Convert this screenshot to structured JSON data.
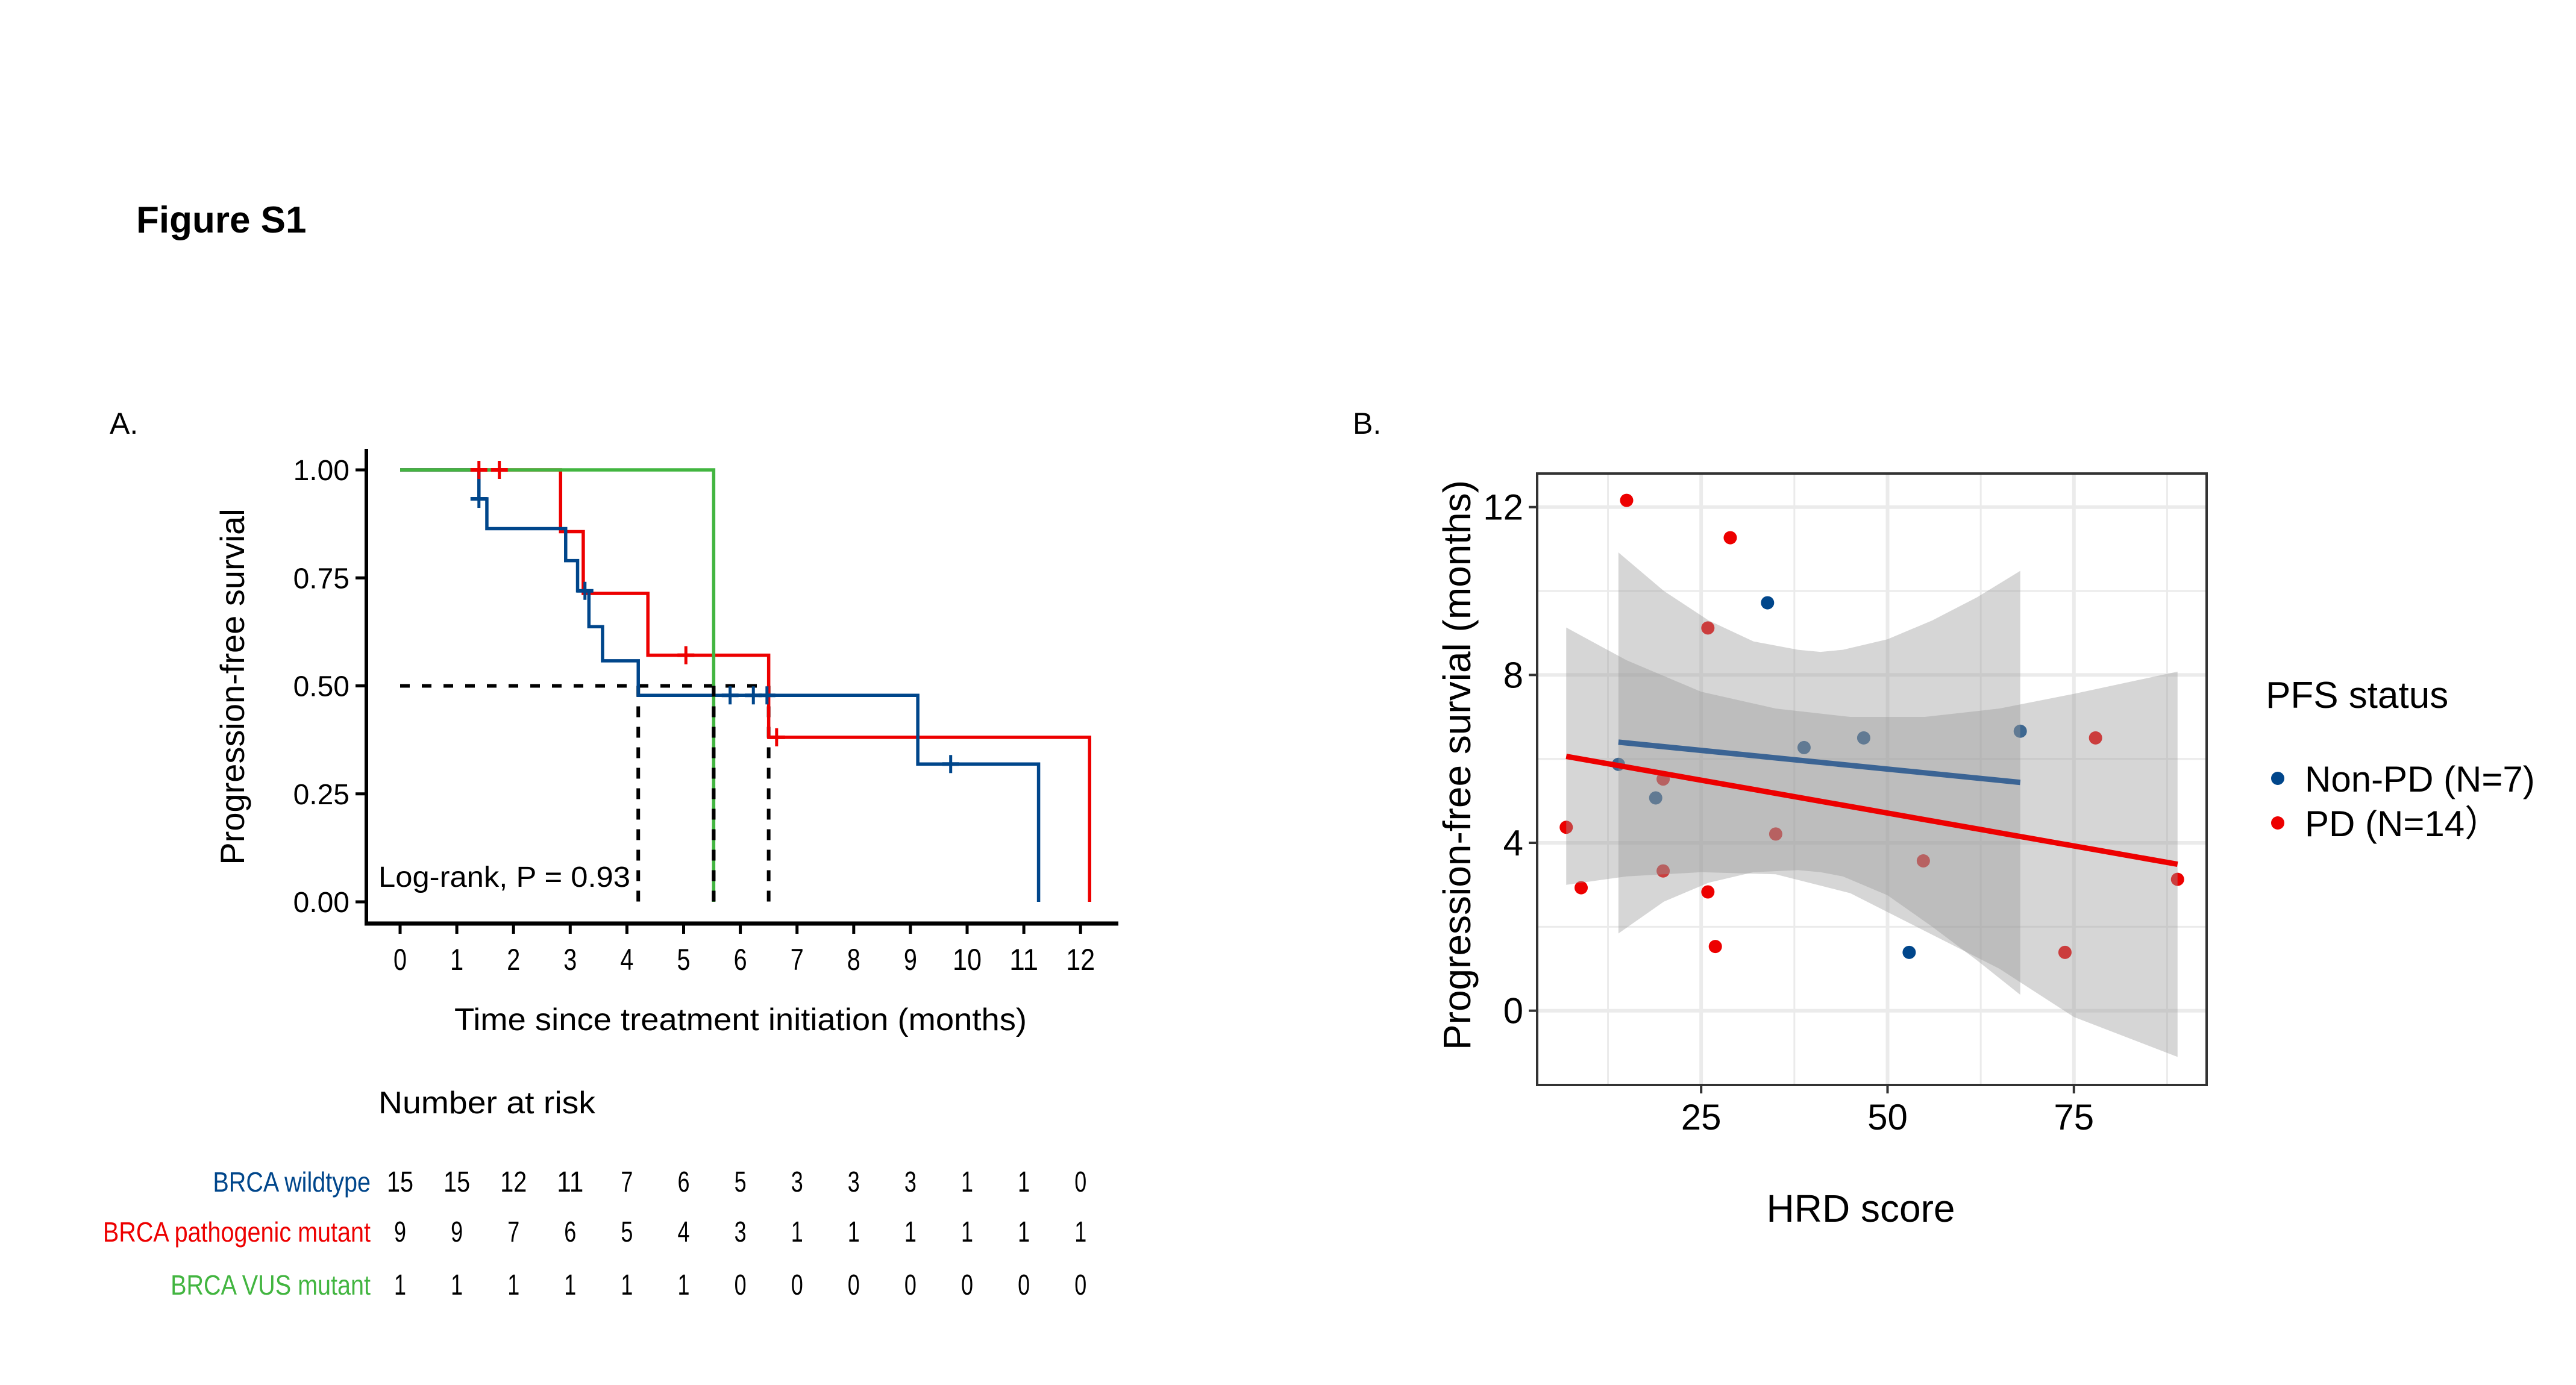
{
  "figure_title": "Figure S1",
  "panel_a_label": "A.",
  "panel_b_label": "B.",
  "colors": {
    "wildtype": "#00468B",
    "pathogenic": "#ED0000",
    "vus": "#42B540",
    "ribbon": "#999999",
    "grid": "#EBEBEB"
  },
  "chart_data": [
    {
      "type": "line",
      "subtype": "kaplan-meier",
      "title": "",
      "xlabel": "Time since treatment initiation (months)",
      "ylabel": "Progression-free survial",
      "xlim": [
        -0.6,
        12.6
      ],
      "ylim": [
        0,
        1.05
      ],
      "xticks": [
        0,
        1,
        2,
        3,
        4,
        5,
        6,
        7,
        8,
        9,
        10,
        11,
        12
      ],
      "yticks": [
        0.0,
        0.25,
        0.5,
        0.75,
        1.0
      ],
      "ytick_labels": [
        "0.00",
        "0.25",
        "0.50",
        "0.75",
        "1.00"
      ],
      "grid": false,
      "annotation": "Log-rank, P = 0.93",
      "median_line": {
        "survival": 0.5,
        "medians": [
          4.2,
          5.53,
          6.5
        ]
      },
      "series": [
        {
          "name": "BRCA wildtype",
          "color_key": "wildtype",
          "steps": [
            [
              0,
              1.0
            ],
            [
              1.39,
              0.933
            ],
            [
              1.53,
              0.864
            ],
            [
              2.92,
              0.79
            ],
            [
              3.13,
              0.72
            ],
            [
              3.33,
              0.637
            ],
            [
              3.57,
              0.558
            ],
            [
              4.2,
              0.478
            ],
            [
              9.13,
              0.319
            ],
            [
              11.26,
              0.0
            ]
          ],
          "end": 11.26,
          "censors": [
            [
              1.39,
              0.933
            ],
            [
              3.26,
              0.72
            ],
            [
              5.82,
              0.478
            ],
            [
              6.23,
              0.478
            ],
            [
              6.47,
              0.478
            ],
            [
              9.71,
              0.319
            ]
          ]
        },
        {
          "name": "BRCA pathogenic mutant",
          "color_key": "pathogenic",
          "steps": [
            [
              0,
              1.0
            ],
            [
              2.83,
              0.857
            ],
            [
              3.23,
              0.714
            ],
            [
              4.37,
              0.571
            ],
            [
              6.5,
              0.381
            ],
            [
              12.16,
              0.0
            ]
          ],
          "end": 12.16,
          "censors": [
            [
              1.39,
              1.0
            ],
            [
              1.75,
              1.0
            ],
            [
              5.04,
              0.571
            ],
            [
              6.64,
              0.381
            ]
          ]
        },
        {
          "name": "BRCA VUS mutant",
          "color_key": "vus",
          "steps": [
            [
              0,
              1.0
            ],
            [
              5.53,
              0.0
            ]
          ],
          "end": 5.53,
          "censors": []
        }
      ],
      "risk_table": {
        "title": "Number at risk",
        "times": [
          0,
          1,
          2,
          3,
          4,
          5,
          6,
          7,
          8,
          9,
          10,
          11,
          12
        ],
        "rows": [
          {
            "label": "BRCA wildtype",
            "color_key": "wildtype",
            "values": [
              15,
              15,
              12,
              11,
              7,
              6,
              5,
              3,
              3,
              3,
              1,
              1,
              0
            ]
          },
          {
            "label": "BRCA pathogenic mutant",
            "color_key": "pathogenic",
            "values": [
              9,
              9,
              7,
              6,
              5,
              4,
              3,
              1,
              1,
              1,
              1,
              1,
              1
            ]
          },
          {
            "label": "BRCA VUS mutant",
            "color_key": "vus",
            "values": [
              1,
              1,
              1,
              1,
              1,
              1,
              0,
              0,
              0,
              0,
              0,
              0,
              0
            ]
          }
        ]
      }
    },
    {
      "type": "scatter",
      "title": "",
      "xlabel": "HRD score",
      "ylabel": "Progression-free survial (months)",
      "xlim": [
        3.0,
        92.8
      ],
      "ylim": [
        -1.77,
        12.8
      ],
      "xticks": [
        25,
        50,
        75
      ],
      "yticks": [
        0,
        4,
        8,
        12
      ],
      "x_minor": [
        12.5,
        37.5,
        62.5,
        87.5
      ],
      "y_minor": [
        2,
        6,
        10
      ],
      "grid": true,
      "legend": {
        "title": "PFS status",
        "placement": "right"
      },
      "series": [
        {
          "name": "Non-PD (N=7)",
          "color_key": "wildtype",
          "points": [
            [
              13.9,
              5.87
            ],
            [
              18.9,
              5.07
            ],
            [
              33.9,
              9.72
            ],
            [
              38.8,
              6.27
            ],
            [
              46.8,
              6.5
            ],
            [
              52.9,
              1.39
            ],
            [
              67.8,
              6.66
            ]
          ],
          "fit": {
            "x": [
              13.9,
              67.8
            ],
            "y": [
              6.4,
              5.44
            ]
          },
          "band": {
            "x": [
              13.9,
              20,
              26,
              32,
              38,
              41,
              44,
              50,
              56,
              62,
              67.8
            ],
            "upper": [
              10.92,
              10.0,
              9.3,
              8.8,
              8.6,
              8.55,
              8.6,
              8.85,
              9.3,
              9.85,
              10.48
            ],
            "lower": [
              1.84,
              2.6,
              3.05,
              3.3,
              3.35,
              3.3,
              3.2,
              2.75,
              2.0,
              1.2,
              0.38
            ]
          }
        },
        {
          "name": "PD (N=14）",
          "color_key": "pathogenic",
          "points": [
            [
              6.9,
              4.37
            ],
            [
              8.9,
              2.93
            ],
            [
              15.0,
              12.16
            ],
            [
              19.9,
              5.52
            ],
            [
              19.9,
              3.33
            ],
            [
              25.9,
              9.12
            ],
            [
              25.9,
              2.83
            ],
            [
              26.9,
              1.53
            ],
            [
              28.9,
              11.27
            ],
            [
              35.0,
              4.21
            ],
            [
              54.8,
              3.57
            ],
            [
              73.8,
              1.39
            ],
            [
              77.9,
              6.5
            ],
            [
              88.9,
              3.13
            ]
          ],
          "fit": {
            "x": [
              6.9,
              88.9
            ],
            "y": [
              6.06,
              3.49
            ]
          },
          "band": {
            "x": [
              6.9,
              15,
              25,
              35,
              45,
              55,
              65,
              75,
              88.9
            ],
            "upper": [
              9.13,
              8.35,
              7.6,
              7.2,
              7.0,
              7.0,
              7.2,
              7.55,
              8.08
            ],
            "lower": [
              3.0,
              3.2,
              3.3,
              3.25,
              2.8,
              1.9,
              1.0,
              -0.15,
              -1.1
            ]
          }
        }
      ]
    }
  ]
}
